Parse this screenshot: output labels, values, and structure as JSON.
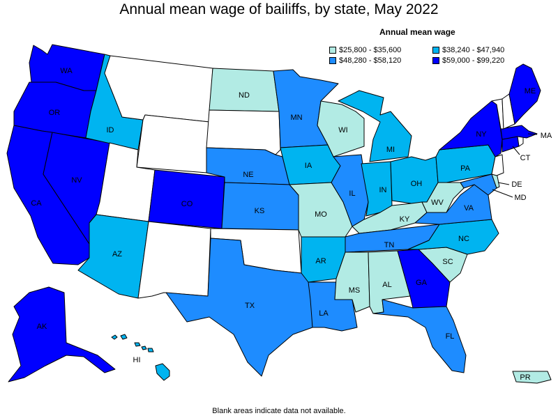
{
  "title": "Annual mean wage of bailiffs, by state, May 2022",
  "legend": {
    "title": "Annual mean wage",
    "items": [
      {
        "label": "$25,800 - $35,600",
        "color": "#b2ebe4"
      },
      {
        "label": "$38,240 - $47,940",
        "color": "#00b4f0"
      },
      {
        "label": "$48,280 - $58,120",
        "color": "#1e8cff"
      },
      {
        "label": "$59,000 - $99,220",
        "color": "#0000ff"
      }
    ]
  },
  "colors": {
    "no_data": "#ffffff",
    "border": "#000000"
  },
  "footnote": "Blank areas indicate data not available.",
  "states": [
    {
      "abbr": "WA",
      "bin": 3
    },
    {
      "abbr": "OR",
      "bin": 3
    },
    {
      "abbr": "CA",
      "bin": 3
    },
    {
      "abbr": "NV",
      "bin": 3
    },
    {
      "abbr": "ID",
      "bin": 1
    },
    {
      "abbr": "MT",
      "bin": null
    },
    {
      "abbr": "WY",
      "bin": null
    },
    {
      "abbr": "UT",
      "bin": null
    },
    {
      "abbr": "AZ",
      "bin": 1
    },
    {
      "abbr": "CO",
      "bin": 3
    },
    {
      "abbr": "NM",
      "bin": null
    },
    {
      "abbr": "ND",
      "bin": 0
    },
    {
      "abbr": "SD",
      "bin": null
    },
    {
      "abbr": "NE",
      "bin": 2
    },
    {
      "abbr": "KS",
      "bin": 2
    },
    {
      "abbr": "OK",
      "bin": null
    },
    {
      "abbr": "TX",
      "bin": 2
    },
    {
      "abbr": "MN",
      "bin": 2
    },
    {
      "abbr": "IA",
      "bin": 1
    },
    {
      "abbr": "MO",
      "bin": 0
    },
    {
      "abbr": "AR",
      "bin": 1
    },
    {
      "abbr": "LA",
      "bin": 2
    },
    {
      "abbr": "WI",
      "bin": 0
    },
    {
      "abbr": "IL",
      "bin": 2
    },
    {
      "abbr": "MI",
      "bin": 1
    },
    {
      "abbr": "IN",
      "bin": 1
    },
    {
      "abbr": "OH",
      "bin": 1
    },
    {
      "abbr": "KY",
      "bin": 0
    },
    {
      "abbr": "TN",
      "bin": 2
    },
    {
      "abbr": "MS",
      "bin": 0
    },
    {
      "abbr": "AL",
      "bin": 0
    },
    {
      "abbr": "GA",
      "bin": 3
    },
    {
      "abbr": "FL",
      "bin": 2
    },
    {
      "abbr": "SC",
      "bin": 0
    },
    {
      "abbr": "NC",
      "bin": 1
    },
    {
      "abbr": "VA",
      "bin": 2
    },
    {
      "abbr": "WV",
      "bin": 0
    },
    {
      "abbr": "PA",
      "bin": 1
    },
    {
      "abbr": "NY",
      "bin": 3
    },
    {
      "abbr": "ME",
      "bin": 3
    },
    {
      "abbr": "MA",
      "bin": 3
    },
    {
      "abbr": "CT",
      "bin": 3
    },
    {
      "abbr": "DE",
      "bin": 0
    },
    {
      "abbr": "MD",
      "bin": 2
    },
    {
      "abbr": "NJ",
      "bin": null
    },
    {
      "abbr": "VT",
      "bin": null
    },
    {
      "abbr": "NH",
      "bin": null
    },
    {
      "abbr": "RI",
      "bin": null
    },
    {
      "abbr": "AK",
      "bin": 3
    },
    {
      "abbr": "HI",
      "bin": 1
    },
    {
      "abbr": "PR",
      "bin": 0
    }
  ]
}
